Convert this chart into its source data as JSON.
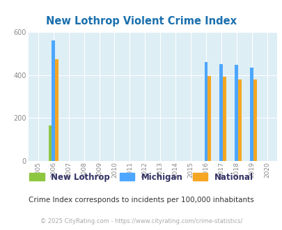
{
  "title": "New Lothrop Violent Crime Index",
  "subtitle": "Crime Index corresponds to incidents per 100,000 inhabitants",
  "footer": "© 2025 CityRating.com - https://www.cityrating.com/crime-statistics/",
  "years": [
    2005,
    2006,
    2007,
    2008,
    2009,
    2010,
    2011,
    2012,
    2013,
    2014,
    2015,
    2016,
    2017,
    2018,
    2019,
    2020
  ],
  "new_lothrop": {
    "2006": 165
  },
  "michigan": {
    "2006": 563,
    "2016": 462,
    "2017": 452,
    "2018": 448,
    "2019": 435
  },
  "national": {
    "2006": 473,
    "2016": 397,
    "2017": 394,
    "2018": 381,
    "2019": 379
  },
  "color_new_lothrop": "#8dc63f",
  "color_michigan": "#4da6ff",
  "color_national": "#f5a623",
  "bg_color": "#ddeef5",
  "title_color": "#1a6fad",
  "subtitle_color": "#333333",
  "footer_color": "#aaaaaa",
  "legend_text_color": "#333366",
  "ylim": [
    0,
    600
  ],
  "yticks": [
    0,
    200,
    400,
    600
  ],
  "bar_width": 0.22
}
